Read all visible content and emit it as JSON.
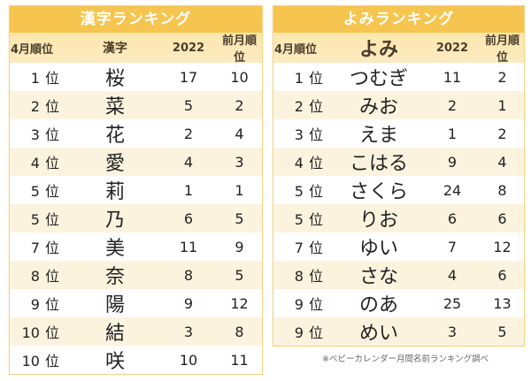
{
  "kanji_table": {
    "title": "漢字ランキング",
    "headers": [
      "4月順位",
      "漢字",
      "2022",
      "前月順位"
    ],
    "rank_unit": "位",
    "rows": [
      {
        "rank": "1",
        "name": "桜",
        "y2022": "17",
        "prev": "10"
      },
      {
        "rank": "2",
        "name": "菜",
        "y2022": "5",
        "prev": "2"
      },
      {
        "rank": "3",
        "name": "花",
        "y2022": "2",
        "prev": "4"
      },
      {
        "rank": "4",
        "name": "愛",
        "y2022": "4",
        "prev": "3"
      },
      {
        "rank": "5",
        "name": "莉",
        "y2022": "1",
        "prev": "1"
      },
      {
        "rank": "5",
        "name": "乃",
        "y2022": "6",
        "prev": "5"
      },
      {
        "rank": "7",
        "name": "美",
        "y2022": "11",
        "prev": "9"
      },
      {
        "rank": "8",
        "name": "奈",
        "y2022": "8",
        "prev": "5"
      },
      {
        "rank": "9",
        "name": "陽",
        "y2022": "9",
        "prev": "12"
      },
      {
        "rank": "10",
        "name": "結",
        "y2022": "3",
        "prev": "8"
      },
      {
        "rank": "10",
        "name": "咲",
        "y2022": "10",
        "prev": "11"
      }
    ]
  },
  "yomi_table": {
    "title": "よみランキング",
    "headers": [
      "4月順位",
      "よみ",
      "2022",
      "前月順位"
    ],
    "rank_unit": "位",
    "rows": [
      {
        "rank": "1",
        "name": "つむぎ",
        "y2022": "11",
        "prev": "2"
      },
      {
        "rank": "2",
        "name": "みお",
        "y2022": "2",
        "prev": "1"
      },
      {
        "rank": "3",
        "name": "えま",
        "y2022": "1",
        "prev": "2"
      },
      {
        "rank": "4",
        "name": "こはる",
        "y2022": "9",
        "prev": "4"
      },
      {
        "rank": "5",
        "name": "さくら",
        "y2022": "24",
        "prev": "8"
      },
      {
        "rank": "5",
        "name": "りお",
        "y2022": "6",
        "prev": "6"
      },
      {
        "rank": "7",
        "name": "ゆい",
        "y2022": "7",
        "prev": "12"
      },
      {
        "rank": "8",
        "name": "さな",
        "y2022": "4",
        "prev": "6"
      },
      {
        "rank": "9",
        "name": "のあ",
        "y2022": "25",
        "prev": "13"
      },
      {
        "rank": "9",
        "name": "めい",
        "y2022": "3",
        "prev": "5"
      }
    ]
  },
  "source_note": "※ベビーカレンダー月間名前ランキング調べ",
  "colors": {
    "title_bg": "#f6c54f",
    "header_bg": "#fde7ad",
    "row_alt_bg": "#fcf3df",
    "border": "#f0d489"
  }
}
